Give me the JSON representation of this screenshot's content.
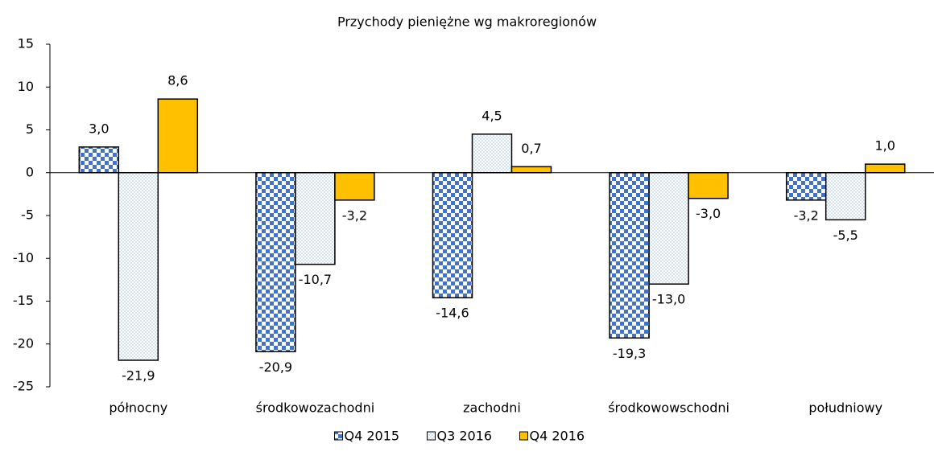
{
  "chart_data": {
    "type": "bar",
    "title": "Przychody pieniężne wg makroregionów",
    "categories": [
      "północny",
      "środkowozachodni",
      "zachodni",
      "środkowowschodni",
      "południowy"
    ],
    "series": [
      {
        "name": "Q4 2015",
        "color": "#4472c4",
        "pattern": "checker",
        "values": [
          3.0,
          -20.9,
          -14.6,
          -19.3,
          -3.2
        ],
        "value_labels": [
          "3,0",
          "-20,9",
          "-14,6",
          "-19,3",
          "-3,2"
        ]
      },
      {
        "name": "Q3 2016",
        "color": "#9dc3e6",
        "pattern": "dots",
        "values": [
          -21.9,
          -10.7,
          4.5,
          -13.0,
          -5.5
        ],
        "value_labels": [
          "-21,9",
          "-10,7",
          "4,5",
          "-13,0",
          "-5,5"
        ]
      },
      {
        "name": "Q4 2016",
        "color": "#ffc000",
        "pattern": "solid",
        "values": [
          8.6,
          -3.2,
          0.7,
          -3.0,
          1.0
        ],
        "value_labels": [
          "8,6",
          "-3,2",
          "0,7",
          "-3,0",
          "1,0"
        ]
      }
    ],
    "ylim": [
      -25,
      15
    ],
    "yticks": [
      -25,
      -20,
      -15,
      -10,
      -5,
      0,
      5,
      10,
      15
    ],
    "grid": false,
    "legend": "bottom"
  }
}
